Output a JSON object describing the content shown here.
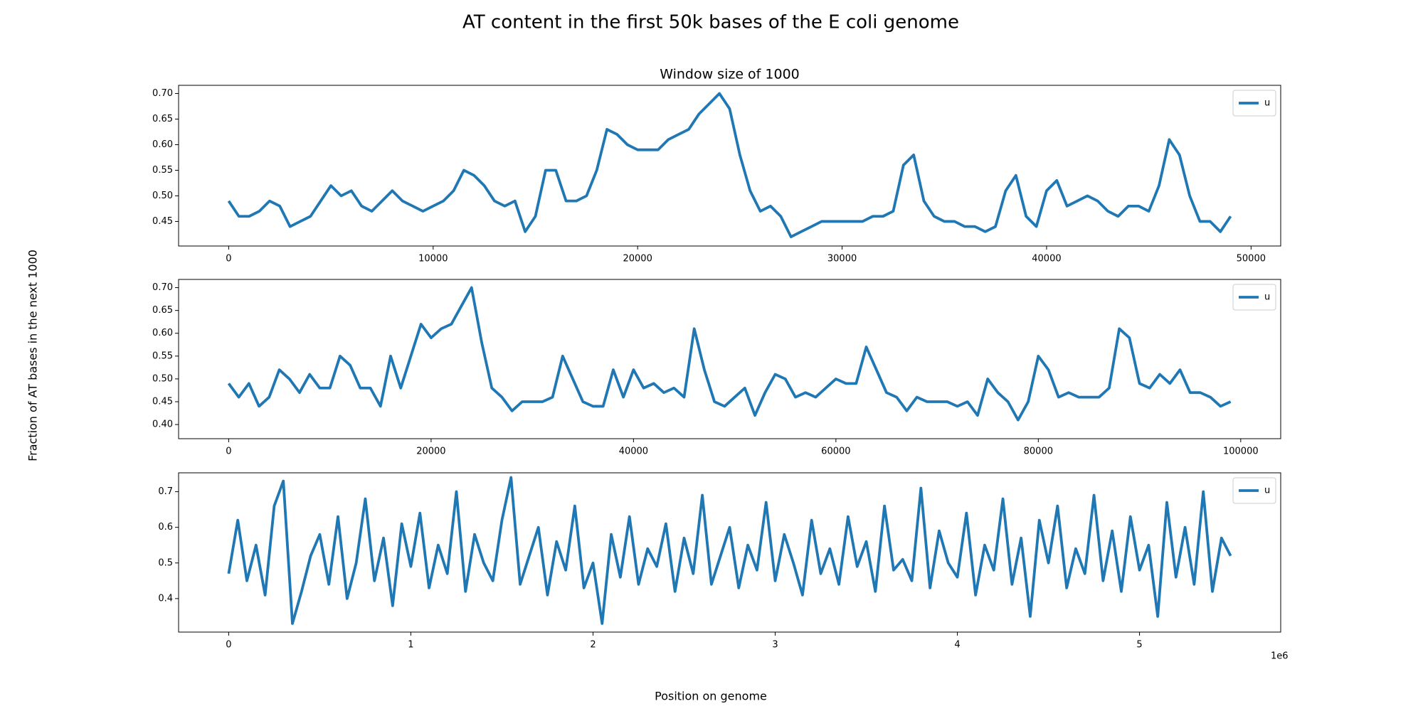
{
  "figure": {
    "title": "AT content in the first 50k bases of the E coli genome",
    "ylabel": "Fraction of AT bases in the next 1000",
    "xlabel": "Position on genome"
  },
  "chart_data": [
    {
      "type": "line",
      "title": "Window size of 1000",
      "legend": "upper right",
      "x": [
        0,
        500,
        1000,
        1500,
        2000,
        2500,
        3000,
        3500,
        4000,
        4500,
        5000,
        5500,
        6000,
        6500,
        7000,
        7500,
        8000,
        8500,
        9000,
        9500,
        10000,
        10500,
        11000,
        11500,
        12000,
        12500,
        13000,
        13500,
        14000,
        14500,
        15000,
        15500,
        16000,
        16500,
        17000,
        17500,
        18000,
        18500,
        19000,
        19500,
        20000,
        20500,
        21000,
        21500,
        22000,
        22500,
        23000,
        23500,
        24000,
        24500,
        25000,
        25500,
        26000,
        26500,
        27000,
        27500,
        28000,
        28500,
        29000,
        29500,
        30000,
        30500,
        31000,
        31500,
        32000,
        32500,
        33000,
        33500,
        34000,
        34500,
        35000,
        35500,
        36000,
        36500,
        37000,
        37500,
        38000,
        38500,
        39000,
        39500,
        40000,
        40500,
        41000,
        41500,
        42000,
        42500,
        43000,
        43500,
        44000,
        44500,
        45000,
        45500,
        46000,
        46500,
        47000,
        47500,
        48000,
        48500,
        49000
      ],
      "series": [
        {
          "name": "u",
          "color": "#1f77b4",
          "values": [
            0.49,
            0.46,
            0.46,
            0.47,
            0.49,
            0.48,
            0.44,
            0.45,
            0.46,
            0.49,
            0.52,
            0.5,
            0.51,
            0.48,
            0.47,
            0.49,
            0.51,
            0.49,
            0.48,
            0.47,
            0.48,
            0.49,
            0.51,
            0.55,
            0.54,
            0.52,
            0.49,
            0.48,
            0.49,
            0.43,
            0.46,
            0.55,
            0.55,
            0.49,
            0.49,
            0.5,
            0.55,
            0.63,
            0.62,
            0.6,
            0.59,
            0.59,
            0.59,
            0.61,
            0.62,
            0.63,
            0.66,
            0.68,
            0.7,
            0.67,
            0.58,
            0.51,
            0.47,
            0.48,
            0.46,
            0.42,
            0.43,
            0.44,
            0.45,
            0.45,
            0.45,
            0.45,
            0.45,
            0.46,
            0.46,
            0.47,
            0.56,
            0.58,
            0.49,
            0.46,
            0.45,
            0.45,
            0.44,
            0.44,
            0.43,
            0.44,
            0.51,
            0.54,
            0.46,
            0.44,
            0.51,
            0.53,
            0.48,
            0.49,
            0.5,
            0.49,
            0.47,
            0.46,
            0.48,
            0.48,
            0.47,
            0.52,
            0.61,
            0.58,
            0.5,
            0.45,
            0.45,
            0.43,
            0.46
          ]
        }
      ],
      "xlim": [
        -2450,
        51450
      ],
      "ylim": [
        0.402,
        0.716
      ],
      "xticks": [
        0,
        10000,
        20000,
        30000,
        40000,
        50000
      ],
      "yticks": [
        0.45,
        {
          "value": 0.5,
          "label": "0.50"
        },
        0.55,
        {
          "value": 0.6,
          "label": "0.60"
        },
        0.65,
        {
          "value": 0.7,
          "label": "0.70"
        }
      ]
    },
    {
      "type": "line",
      "legend": "upper right",
      "x": [
        0,
        1000,
        2000,
        3000,
        4000,
        5000,
        6000,
        7000,
        8000,
        9000,
        10000,
        11000,
        12000,
        13000,
        14000,
        15000,
        16000,
        17000,
        18000,
        19000,
        20000,
        21000,
        22000,
        23000,
        24000,
        25000,
        26000,
        27000,
        28000,
        29000,
        30000,
        31000,
        32000,
        33000,
        34000,
        35000,
        36000,
        37000,
        38000,
        39000,
        40000,
        41000,
        42000,
        43000,
        44000,
        45000,
        46000,
        47000,
        48000,
        49000,
        50000,
        51000,
        52000,
        53000,
        54000,
        55000,
        56000,
        57000,
        58000,
        59000,
        60000,
        61000,
        62000,
        63000,
        64000,
        65000,
        66000,
        67000,
        68000,
        69000,
        70000,
        71000,
        72000,
        73000,
        74000,
        75000,
        76000,
        77000,
        78000,
        79000,
        80000,
        81000,
        82000,
        83000,
        84000,
        85000,
        86000,
        87000,
        88000,
        89000,
        90000,
        91000,
        92000,
        93000,
        94000,
        95000,
        96000,
        97000,
        98000,
        99000
      ],
      "series": [
        {
          "name": "u",
          "color": "#1f77b4",
          "values": [
            0.49,
            0.46,
            0.49,
            0.44,
            0.46,
            0.52,
            0.5,
            0.47,
            0.51,
            0.48,
            0.48,
            0.55,
            0.53,
            0.48,
            0.48,
            0.44,
            0.55,
            0.48,
            0.55,
            0.62,
            0.59,
            0.61,
            0.62,
            0.66,
            0.7,
            0.58,
            0.48,
            0.46,
            0.43,
            0.45,
            0.45,
            0.45,
            0.46,
            0.55,
            0.5,
            0.45,
            0.44,
            0.44,
            0.52,
            0.46,
            0.52,
            0.48,
            0.49,
            0.47,
            0.48,
            0.46,
            0.61,
            0.52,
            0.45,
            0.44,
            0.46,
            0.48,
            0.42,
            0.47,
            0.51,
            0.5,
            0.46,
            0.47,
            0.46,
            0.48,
            0.5,
            0.49,
            0.49,
            0.57,
            0.52,
            0.47,
            0.46,
            0.43,
            0.46,
            0.45,
            0.45,
            0.45,
            0.44,
            0.45,
            0.42,
            0.5,
            0.47,
            0.45,
            0.41,
            0.45,
            0.55,
            0.52,
            0.46,
            0.47,
            0.46,
            0.46,
            0.46,
            0.48,
            0.61,
            0.59,
            0.49,
            0.48,
            0.51,
            0.49,
            0.52,
            0.47,
            0.47,
            0.46,
            0.44,
            0.45
          ]
        }
      ],
      "xlim": [
        -4950,
        103950
      ],
      "ylim": [
        0.369,
        0.718
      ],
      "xticks": [
        0,
        20000,
        40000,
        60000,
        80000,
        100000
      ],
      "yticks": [
        {
          "value": 0.4,
          "label": "0.40"
        },
        0.45,
        {
          "value": 0.5,
          "label": "0.50"
        },
        0.55,
        {
          "value": 0.6,
          "label": "0.60"
        },
        0.65,
        {
          "value": 0.7,
          "label": "0.70"
        }
      ]
    },
    {
      "type": "line",
      "legend": "upper right",
      "x_offset_label": "1e6",
      "x": [
        0,
        50000,
        100000,
        150000,
        200000,
        250000,
        300000,
        350000,
        400000,
        450000,
        500000,
        550000,
        600000,
        650000,
        700000,
        750000,
        800000,
        850000,
        900000,
        950000,
        1000000,
        1050000,
        1100000,
        1150000,
        1200000,
        1250000,
        1300000,
        1350000,
        1400000,
        1450000,
        1500000,
        1550000,
        1600000,
        1650000,
        1700000,
        1750000,
        1800000,
        1850000,
        1900000,
        1950000,
        2000000,
        2050000,
        2100000,
        2150000,
        2200000,
        2250000,
        2300000,
        2350000,
        2400000,
        2450000,
        2500000,
        2550000,
        2600000,
        2650000,
        2700000,
        2750000,
        2800000,
        2850000,
        2900000,
        2950000,
        3000000,
        3050000,
        3100000,
        3150000,
        3200000,
        3250000,
        3300000,
        3350000,
        3400000,
        3450000,
        3500000,
        3550000,
        3600000,
        3650000,
        3700000,
        3750000,
        3800000,
        3850000,
        3900000,
        3950000,
        4000000,
        4050000,
        4100000,
        4150000,
        4200000,
        4250000,
        4300000,
        4350000,
        4400000,
        4450000,
        4500000,
        4550000,
        4600000,
        4650000,
        4700000,
        4750000,
        4800000,
        4850000,
        4900000,
        4950000,
        5000000,
        5050000,
        5100000,
        5150000,
        5200000,
        5250000,
        5300000,
        5350000,
        5400000,
        5450000,
        5500000
      ],
      "series": [
        {
          "name": "u",
          "color": "#1f77b4",
          "values": [
            0.47,
            0.62,
            0.45,
            0.55,
            0.41,
            0.66,
            0.73,
            0.33,
            0.42,
            0.52,
            0.58,
            0.44,
            0.63,
            0.4,
            0.5,
            0.68,
            0.45,
            0.57,
            0.38,
            0.61,
            0.49,
            0.64,
            0.43,
            0.55,
            0.47,
            0.7,
            0.42,
            0.58,
            0.5,
            0.45,
            0.62,
            0.74,
            0.44,
            0.52,
            0.6,
            0.41,
            0.56,
            0.48,
            0.66,
            0.43,
            0.5,
            0.33,
            0.58,
            0.46,
            0.63,
            0.44,
            0.54,
            0.49,
            0.61,
            0.42,
            0.57,
            0.47,
            0.69,
            0.44,
            0.52,
            0.6,
            0.43,
            0.55,
            0.48,
            0.67,
            0.45,
            0.58,
            0.5,
            0.41,
            0.62,
            0.47,
            0.54,
            0.44,
            0.63,
            0.49,
            0.56,
            0.42,
            0.66,
            0.48,
            0.51,
            0.45,
            0.71,
            0.43,
            0.59,
            0.5,
            0.46,
            0.64,
            0.41,
            0.55,
            0.48,
            0.68,
            0.44,
            0.57,
            0.35,
            0.62,
            0.5,
            0.66,
            0.43,
            0.54,
            0.47,
            0.69,
            0.45,
            0.59,
            0.42,
            0.63,
            0.48,
            0.55,
            0.35,
            0.67,
            0.46,
            0.6,
            0.44,
            0.7,
            0.42,
            0.57,
            0.52
          ]
        }
      ],
      "xlim": [
        -275000,
        5775000
      ],
      "ylim": [
        0.306,
        0.753
      ],
      "xticks": [
        0,
        {
          "value": 1000000,
          "label": "1"
        },
        {
          "value": 2000000,
          "label": "2"
        },
        {
          "value": 3000000,
          "label": "3"
        },
        {
          "value": 4000000,
          "label": "4"
        },
        {
          "value": 5000000,
          "label": "5"
        }
      ],
      "yticks": [
        0.4,
        0.5,
        0.6,
        0.7
      ]
    }
  ]
}
